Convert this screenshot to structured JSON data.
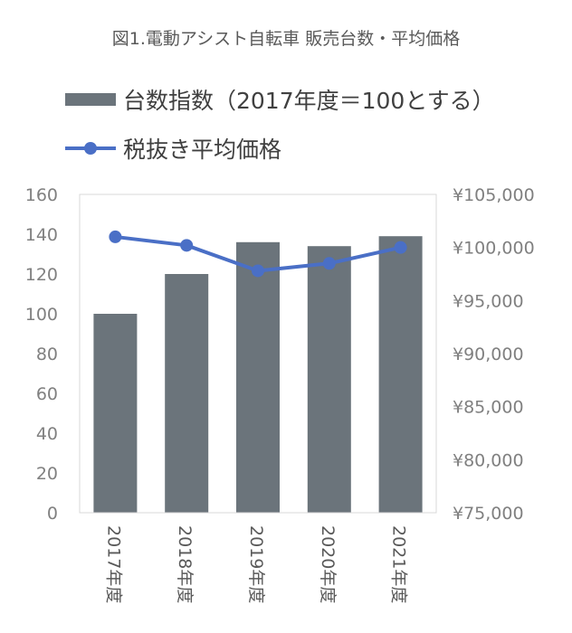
{
  "chart_data": {
    "type": "bar",
    "title": "図1.電動アシスト自転車 販売台数・平均価格",
    "categories": [
      "2017年度",
      "2018年度",
      "2019年度",
      "2020年度",
      "2021年度"
    ],
    "series": [
      {
        "name": "台数指数（2017年度＝100とする）",
        "type": "bar",
        "axis": "left",
        "values": [
          100,
          120,
          136,
          134,
          139
        ]
      },
      {
        "name": "税抜き平均価格",
        "type": "line",
        "axis": "right",
        "values": [
          101000,
          100200,
          97800,
          98500,
          100000
        ]
      }
    ],
    "ylim_left": [
      0,
      160
    ],
    "left_ticks": [
      "0",
      "20",
      "40",
      "60",
      "80",
      "100",
      "120",
      "140",
      "160"
    ],
    "ylim_right": [
      75000,
      105000
    ],
    "right_ticks": [
      "¥75,000",
      "¥80,000",
      "¥85,000",
      "¥90,000",
      "¥95,000",
      "¥100,000",
      "¥105,000"
    ],
    "legend_position": "top-left",
    "grid": false,
    "colors": {
      "bar": "#6b747b",
      "line": "#4a6fc6"
    }
  }
}
